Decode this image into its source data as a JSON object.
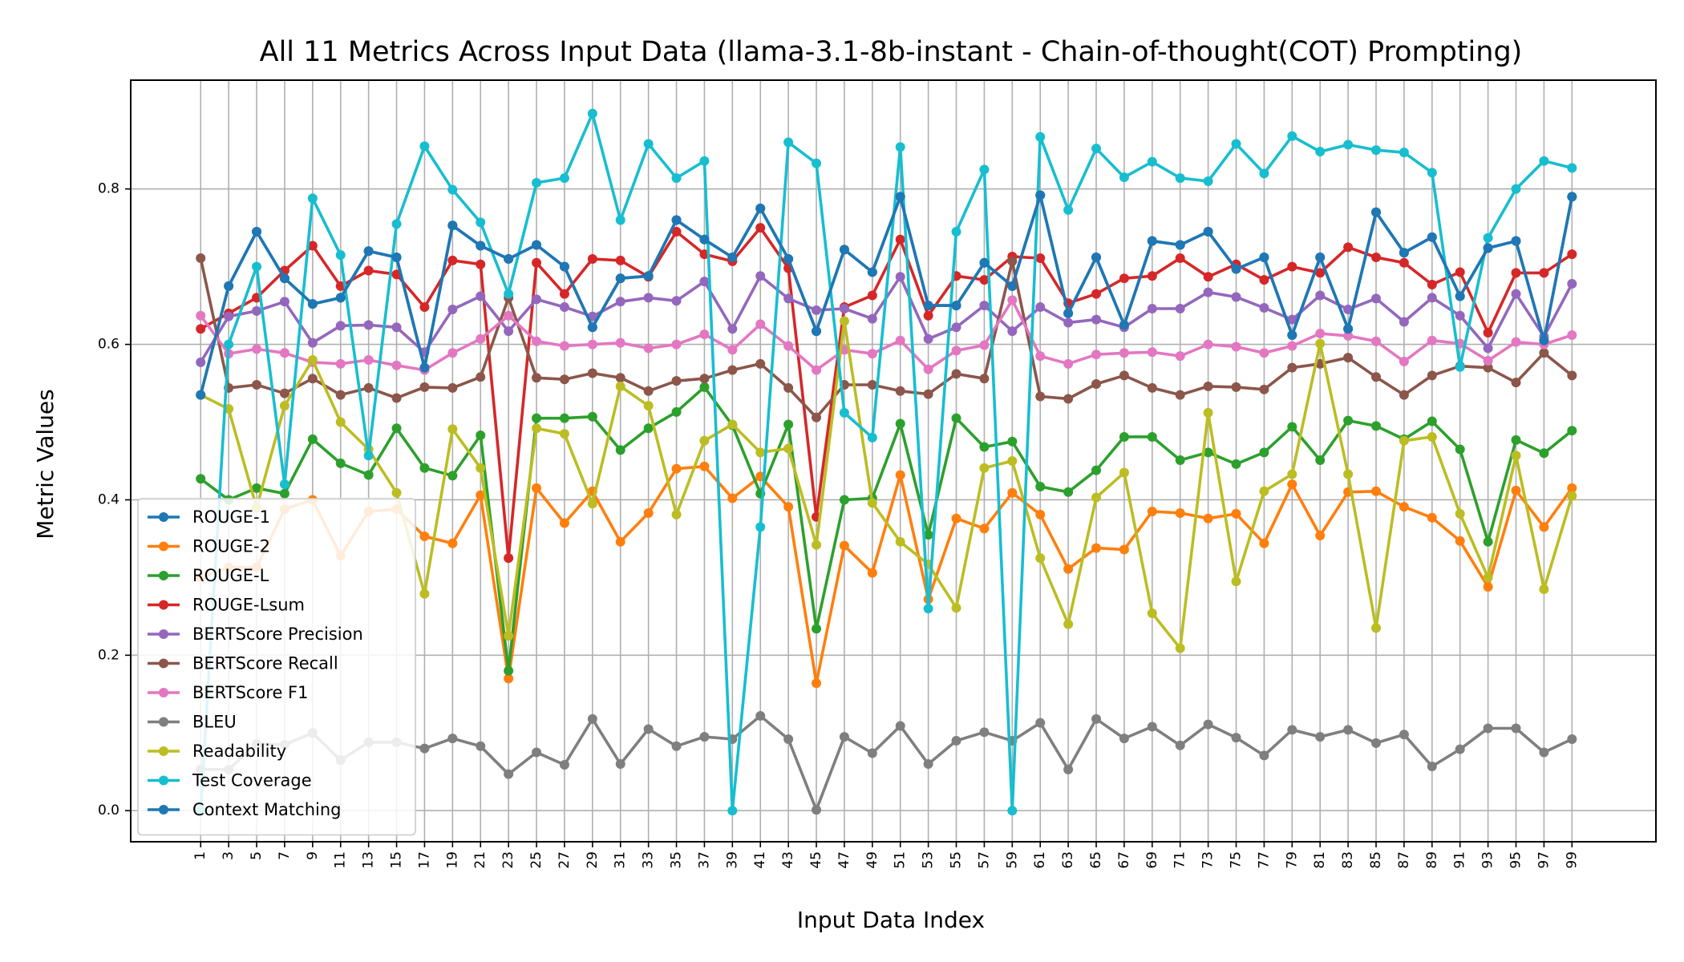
{
  "chart_data": {
    "type": "line",
    "title": "All 11 Metrics Across Input Data (llama-3.1-8b-instant - Chain-of-thought(COT) Prompting)",
    "xlabel": "Input Data Index",
    "ylabel": "Metric Values",
    "x": [
      1,
      3,
      5,
      7,
      9,
      11,
      13,
      15,
      17,
      19,
      21,
      23,
      25,
      27,
      29,
      31,
      33,
      35,
      37,
      39,
      41,
      43,
      45,
      47,
      49,
      51,
      53,
      55,
      57,
      59,
      61,
      63,
      65,
      67,
      69,
      71,
      73,
      75,
      77,
      79,
      81,
      83,
      85,
      87,
      89,
      91,
      93,
      95,
      97,
      99
    ],
    "x_tick_labels": [
      "1",
      "3",
      "5",
      "7",
      "9",
      "11",
      "13",
      "15",
      "17",
      "19",
      "21",
      "23",
      "25",
      "27",
      "29",
      "31",
      "33",
      "35",
      "37",
      "39",
      "41",
      "43",
      "45",
      "47",
      "49",
      "51",
      "53",
      "55",
      "57",
      "59",
      "61",
      "63",
      "65",
      "67",
      "69",
      "71",
      "73",
      "75",
      "77",
      "79",
      "81",
      "83",
      "85",
      "87",
      "89",
      "91",
      "93",
      "95",
      "97",
      "99"
    ],
    "xlim": [
      -4,
      105
    ],
    "ylim": [
      -0.04,
      0.94
    ],
    "y_ticks": [
      0.0,
      0.2,
      0.4,
      0.6,
      0.8
    ],
    "y_tick_labels": [
      "0.0",
      "0.2",
      "0.4",
      "0.6",
      "0.8"
    ],
    "grid": true,
    "legend_position": "lower-left",
    "series": [
      {
        "name": "ROUGE-1",
        "color": "#1f77b4",
        "values": [
          0.535,
          0.675,
          0.745,
          0.685,
          0.652,
          0.66,
          0.72,
          0.712,
          0.57,
          0.753,
          0.727,
          0.71,
          0.728,
          0.7,
          0.622,
          0.685,
          0.688,
          0.76,
          0.735,
          0.712,
          0.775,
          0.71,
          0.617,
          0.722,
          0.693,
          0.79,
          0.65,
          0.65,
          0.705,
          0.675,
          0.792,
          0.64,
          0.712,
          0.625,
          0.733,
          0.728,
          0.745,
          0.697,
          0.712,
          0.612,
          0.712,
          0.62,
          0.77,
          0.718,
          0.738,
          0.662,
          0.724,
          0.733,
          0.605,
          0.79
        ]
      },
      {
        "name": "ROUGE-2",
        "color": "#ff7f0e",
        "values": [
          0.3,
          0.313,
          0.313,
          0.388,
          0.4,
          0.328,
          0.385,
          0.388,
          0.353,
          0.344,
          0.406,
          0.17,
          0.415,
          0.37,
          0.411,
          0.346,
          0.383,
          0.44,
          0.443,
          0.402,
          0.43,
          0.391,
          0.164,
          0.341,
          0.306,
          0.432,
          0.272,
          0.376,
          0.363,
          0.409,
          0.381,
          0.311,
          0.338,
          0.336,
          0.385,
          0.383,
          0.376,
          0.382,
          0.344,
          0.42,
          0.354,
          0.41,
          0.411,
          0.391,
          0.377,
          0.347,
          0.288,
          0.412,
          0.365,
          0.415
        ]
      },
      {
        "name": "ROUGE-L",
        "color": "#2ca02c",
        "values": [
          0.427,
          0.4,
          0.415,
          0.408,
          0.478,
          0.447,
          0.432,
          0.492,
          0.441,
          0.431,
          0.483,
          0.18,
          0.505,
          0.505,
          0.507,
          0.464,
          0.492,
          0.513,
          0.545,
          0.496,
          0.408,
          0.497,
          0.234,
          0.4,
          0.402,
          0.498,
          0.355,
          0.505,
          0.468,
          0.475,
          0.417,
          0.41,
          0.438,
          0.481,
          0.481,
          0.451,
          0.461,
          0.446,
          0.461,
          0.494,
          0.451,
          0.502,
          0.495,
          0.478,
          0.501,
          0.465,
          0.346,
          0.477,
          0.46,
          0.489
        ]
      },
      {
        "name": "ROUGE-Lsum",
        "color": "#d62728",
        "values": [
          0.62,
          0.64,
          0.66,
          0.695,
          0.727,
          0.675,
          0.695,
          0.69,
          0.648,
          0.708,
          0.703,
          0.325,
          0.705,
          0.665,
          0.71,
          0.708,
          0.687,
          0.745,
          0.716,
          0.707,
          0.75,
          0.698,
          0.378,
          0.648,
          0.663,
          0.735,
          0.637,
          0.688,
          0.683,
          0.713,
          0.711,
          0.653,
          0.665,
          0.685,
          0.688,
          0.711,
          0.687,
          0.703,
          0.683,
          0.7,
          0.692,
          0.725,
          0.712,
          0.705,
          0.677,
          0.693,
          0.615,
          0.692,
          0.692,
          0.716
        ]
      },
      {
        "name": "BERTScore Precision",
        "color": "#9467bd",
        "values": [
          0.577,
          0.636,
          0.643,
          0.655,
          0.602,
          0.624,
          0.625,
          0.622,
          0.59,
          0.645,
          0.662,
          0.617,
          0.658,
          0.648,
          0.636,
          0.655,
          0.66,
          0.656,
          0.681,
          0.62,
          0.688,
          0.659,
          0.644,
          0.646,
          0.633,
          0.687,
          0.607,
          0.622,
          0.65,
          0.617,
          0.648,
          0.628,
          0.632,
          0.622,
          0.646,
          0.646,
          0.667,
          0.661,
          0.647,
          0.632,
          0.663,
          0.645,
          0.659,
          0.629,
          0.66,
          0.637,
          0.595,
          0.665,
          0.61,
          0.678
        ]
      },
      {
        "name": "BERTScore Recall",
        "color": "#8c564b",
        "values": [
          0.711,
          0.544,
          0.548,
          0.537,
          0.556,
          0.535,
          0.544,
          0.531,
          0.545,
          0.544,
          0.558,
          0.66,
          0.557,
          0.555,
          0.563,
          0.557,
          0.54,
          0.553,
          0.556,
          0.567,
          0.575,
          0.544,
          0.506,
          0.548,
          0.548,
          0.54,
          0.536,
          0.562,
          0.556,
          0.707,
          0.533,
          0.53,
          0.549,
          0.56,
          0.544,
          0.535,
          0.546,
          0.545,
          0.542,
          0.57,
          0.575,
          0.583,
          0.558,
          0.535,
          0.56,
          0.572,
          0.57,
          0.551,
          0.589,
          0.56
        ]
      },
      {
        "name": "BERTScore F1",
        "color": "#e377c2",
        "values": [
          0.637,
          0.588,
          0.594,
          0.589,
          0.577,
          0.575,
          0.58,
          0.573,
          0.567,
          0.589,
          0.607,
          0.637,
          0.604,
          0.598,
          0.6,
          0.602,
          0.595,
          0.6,
          0.613,
          0.593,
          0.626,
          0.598,
          0.567,
          0.593,
          0.588,
          0.605,
          0.568,
          0.592,
          0.599,
          0.657,
          0.585,
          0.575,
          0.587,
          0.589,
          0.59,
          0.585,
          0.6,
          0.597,
          0.589,
          0.598,
          0.614,
          0.611,
          0.604,
          0.578,
          0.605,
          0.601,
          0.579,
          0.603,
          0.6,
          0.612
        ]
      },
      {
        "name": "BLEU",
        "color": "#7f7f7f",
        "values": [
          0.053,
          0.053,
          0.086,
          0.085,
          0.1,
          0.065,
          0.088,
          0.088,
          0.08,
          0.093,
          0.083,
          0.047,
          0.075,
          0.059,
          0.118,
          0.06,
          0.105,
          0.083,
          0.095,
          0.092,
          0.122,
          0.092,
          0.001,
          0.095,
          0.074,
          0.109,
          0.06,
          0.09,
          0.101,
          0.09,
          0.113,
          0.053,
          0.118,
          0.093,
          0.108,
          0.084,
          0.111,
          0.094,
          0.071,
          0.104,
          0.095,
          0.104,
          0.087,
          0.098,
          0.057,
          0.079,
          0.106,
          0.106,
          0.075,
          0.092
        ]
      },
      {
        "name": "Readability",
        "color": "#bcbd22",
        "values": [
          0.535,
          0.517,
          0.39,
          0.521,
          0.58,
          0.5,
          0.465,
          0.409,
          0.279,
          0.491,
          0.441,
          0.225,
          0.492,
          0.485,
          0.395,
          0.546,
          0.521,
          0.381,
          0.476,
          0.497,
          0.461,
          0.466,
          0.342,
          0.63,
          0.396,
          0.346,
          0.317,
          0.261,
          0.441,
          0.45,
          0.325,
          0.24,
          0.403,
          0.435,
          0.254,
          0.209,
          0.512,
          0.295,
          0.411,
          0.433,
          0.601,
          0.433,
          0.235,
          0.476,
          0.481,
          0.382,
          0.3,
          0.457,
          0.285,
          0.405
        ]
      },
      {
        "name": "Test Coverage",
        "color": "#17becf",
        "values": [
          0.0,
          0.6,
          0.7,
          0.42,
          0.788,
          0.715,
          0.457,
          0.755,
          0.855,
          0.799,
          0.757,
          0.665,
          0.808,
          0.814,
          0.897,
          0.76,
          0.858,
          0.814,
          0.836,
          0.0,
          0.365,
          0.86,
          0.833,
          0.512,
          0.48,
          0.854,
          0.26,
          0.745,
          0.825,
          0.0,
          0.867,
          0.773,
          0.852,
          0.815,
          0.835,
          0.814,
          0.81,
          0.858,
          0.82,
          0.868,
          0.848,
          0.857,
          0.85,
          0.847,
          0.821,
          0.571,
          0.737,
          0.8,
          0.836,
          0.827
        ]
      },
      {
        "name": "Context Matching",
        "color": "#1f77b4",
        "values": [
          0.535,
          0.675,
          0.745,
          0.685,
          0.652,
          0.66,
          0.72,
          0.712,
          0.57,
          0.753,
          0.727,
          0.71,
          0.728,
          0.7,
          0.622,
          0.685,
          0.688,
          0.76,
          0.735,
          0.712,
          0.775,
          0.71,
          0.617,
          0.722,
          0.693,
          0.79,
          0.65,
          0.65,
          0.705,
          0.675,
          0.792,
          0.64,
          0.712,
          0.625,
          0.733,
          0.728,
          0.745,
          0.697,
          0.712,
          0.612,
          0.712,
          0.62,
          0.77,
          0.718,
          0.738,
          0.662,
          0.724,
          0.733,
          0.605,
          0.79
        ]
      }
    ]
  }
}
